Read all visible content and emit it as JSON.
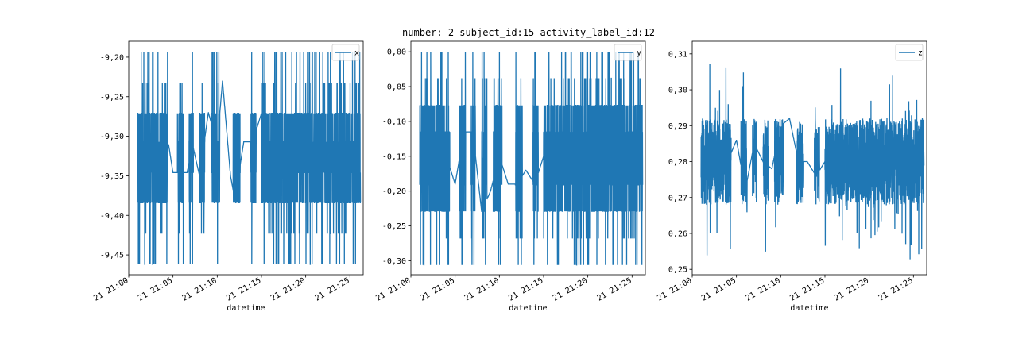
{
  "figure": {
    "title": "number: 2 subject_id:15 activity_label_id:12",
    "line_color": "#1f77b4"
  },
  "chart_data": [
    {
      "type": "line",
      "title": "",
      "xlabel": "datetime",
      "ylabel": "",
      "legend": "top-right",
      "grid": false,
      "x_ticks": [
        "21 21:00",
        "21 21:05",
        "21 21:10",
        "21 21:15",
        "21 21:20",
        "21 21:25"
      ],
      "xlim_minutes": [
        0,
        26.5
      ],
      "y_ticks": [
        "-9,20",
        "-9,25",
        "-9,30",
        "-9,35",
        "-9,40",
        "-9,45"
      ],
      "y_tick_values": [
        -9.2,
        -9.25,
        -9.3,
        -9.35,
        -9.4,
        -9.45
      ],
      "ylim": [
        -9.475,
        -9.18
      ],
      "levels": [
        -9.194,
        -9.233,
        -9.271,
        -9.307,
        -9.346,
        -9.384,
        -9.423,
        -9.462
      ],
      "typical_range": [
        -9.384,
        -9.271
      ],
      "series": [
        {
          "name": "x",
          "x_minutes": [
            1.1,
            1.3,
            1.5,
            2.0,
            2.6,
            3.2,
            3.8,
            4.5,
            5.0,
            6.0,
            6.6,
            7.2,
            8.0,
            9.0,
            10.0,
            10.6,
            11.5,
            12.0,
            13.0,
            14.0,
            15.0,
            16.0,
            17.0,
            18.0,
            19.0,
            20.0,
            21.0,
            22.0,
            23.0,
            24.0,
            25.0,
            26.0
          ],
          "values": [
            -9.27,
            -9.38,
            -9.31,
            -9.35,
            -9.23,
            -9.42,
            -9.38,
            -9.31,
            -9.346,
            -9.346,
            -9.346,
            -9.31,
            -9.35,
            -9.27,
            -9.31,
            -9.23,
            -9.35,
            -9.38,
            -9.307,
            -9.307,
            -9.271,
            -9.42,
            -9.38,
            -9.31,
            -9.27,
            -9.35,
            -9.42,
            -9.31,
            -9.38,
            -9.27,
            -9.35,
            -9.31
          ]
        }
      ]
    },
    {
      "type": "line",
      "title": "",
      "xlabel": "datetime",
      "ylabel": "",
      "legend": "top-right",
      "grid": false,
      "x_ticks": [
        "21 21:00",
        "21 21:05",
        "21 21:10",
        "21 21:15",
        "21 21:20",
        "21 21:25"
      ],
      "xlim_minutes": [
        0,
        26.5
      ],
      "y_ticks": [
        "0,00",
        "-0,05",
        "-0,10",
        "-0,15",
        "-0,20",
        "-0,25",
        "-0,30"
      ],
      "y_tick_values": [
        0.0,
        -0.05,
        -0.1,
        -0.15,
        -0.2,
        -0.25,
        -0.3
      ],
      "ylim": [
        -0.32,
        0.015
      ],
      "levels": [
        0.0,
        -0.038,
        -0.077,
        -0.115,
        -0.153,
        -0.191,
        -0.229,
        -0.268,
        -0.306
      ],
      "typical_range": [
        -0.229,
        -0.077
      ],
      "series": [
        {
          "name": "y",
          "x_minutes": [
            1.0,
            1.5,
            2.0,
            2.5,
            3.0,
            4.0,
            5.0,
            6.0,
            7.0,
            8.0,
            9.0,
            10.0,
            11.0,
            12.0,
            13.0,
            14.0,
            15.0,
            16.0,
            17.0,
            18.0,
            19.0,
            20.0,
            21.0,
            22.0,
            23.0,
            24.0,
            25.0,
            26.0
          ],
          "values": [
            -0.115,
            -0.19,
            -0.191,
            -0.12,
            -0.2,
            -0.15,
            -0.19,
            -0.115,
            -0.115,
            -0.23,
            -0.2,
            -0.15,
            -0.19,
            -0.19,
            -0.17,
            -0.19,
            -0.15,
            -0.16,
            -0.14,
            -0.17,
            -0.15,
            -0.16,
            -0.15,
            -0.17,
            -0.14,
            -0.16,
            -0.15,
            -0.16
          ]
        }
      ]
    },
    {
      "type": "line",
      "title": "",
      "xlabel": "datetime",
      "ylabel": "",
      "legend": "top-right",
      "grid": false,
      "x_ticks": [
        "21 21:00",
        "21 21:05",
        "21 21:10",
        "21 21:15",
        "21 21:20",
        "21 21:25"
      ],
      "xlim_minutes": [
        0,
        26.5
      ],
      "y_ticks": [
        "0,31",
        "0,30",
        "0,29",
        "0,28",
        "0,27",
        "0,26",
        "0,25"
      ],
      "y_tick_values": [
        0.31,
        0.3,
        0.29,
        0.28,
        0.27,
        0.26,
        0.25
      ],
      "ylim": [
        0.2485,
        0.3135
      ],
      "typical_range": [
        0.268,
        0.292
      ],
      "series": [
        {
          "name": "z",
          "x_minutes": [
            1.0,
            1.5,
            2.0,
            3.0,
            4.0,
            5.0,
            6.0,
            7.0,
            8.0,
            9.0,
            10.0,
            11.0,
            12.0,
            13.0,
            14.0,
            15.0,
            16.0,
            17.0,
            18.0,
            19.0,
            20.0,
            21.0,
            22.0,
            23.0,
            24.0,
            25.0,
            26.0
          ],
          "values": [
            0.28,
            0.275,
            0.285,
            0.278,
            0.28,
            0.286,
            0.272,
            0.285,
            0.28,
            0.278,
            0.29,
            0.292,
            0.28,
            0.28,
            0.276,
            0.28,
            0.276,
            0.276,
            0.28,
            0.278,
            0.28,
            0.276,
            0.28,
            0.283,
            0.282,
            0.285,
            0.283
          ]
        }
      ]
    }
  ]
}
